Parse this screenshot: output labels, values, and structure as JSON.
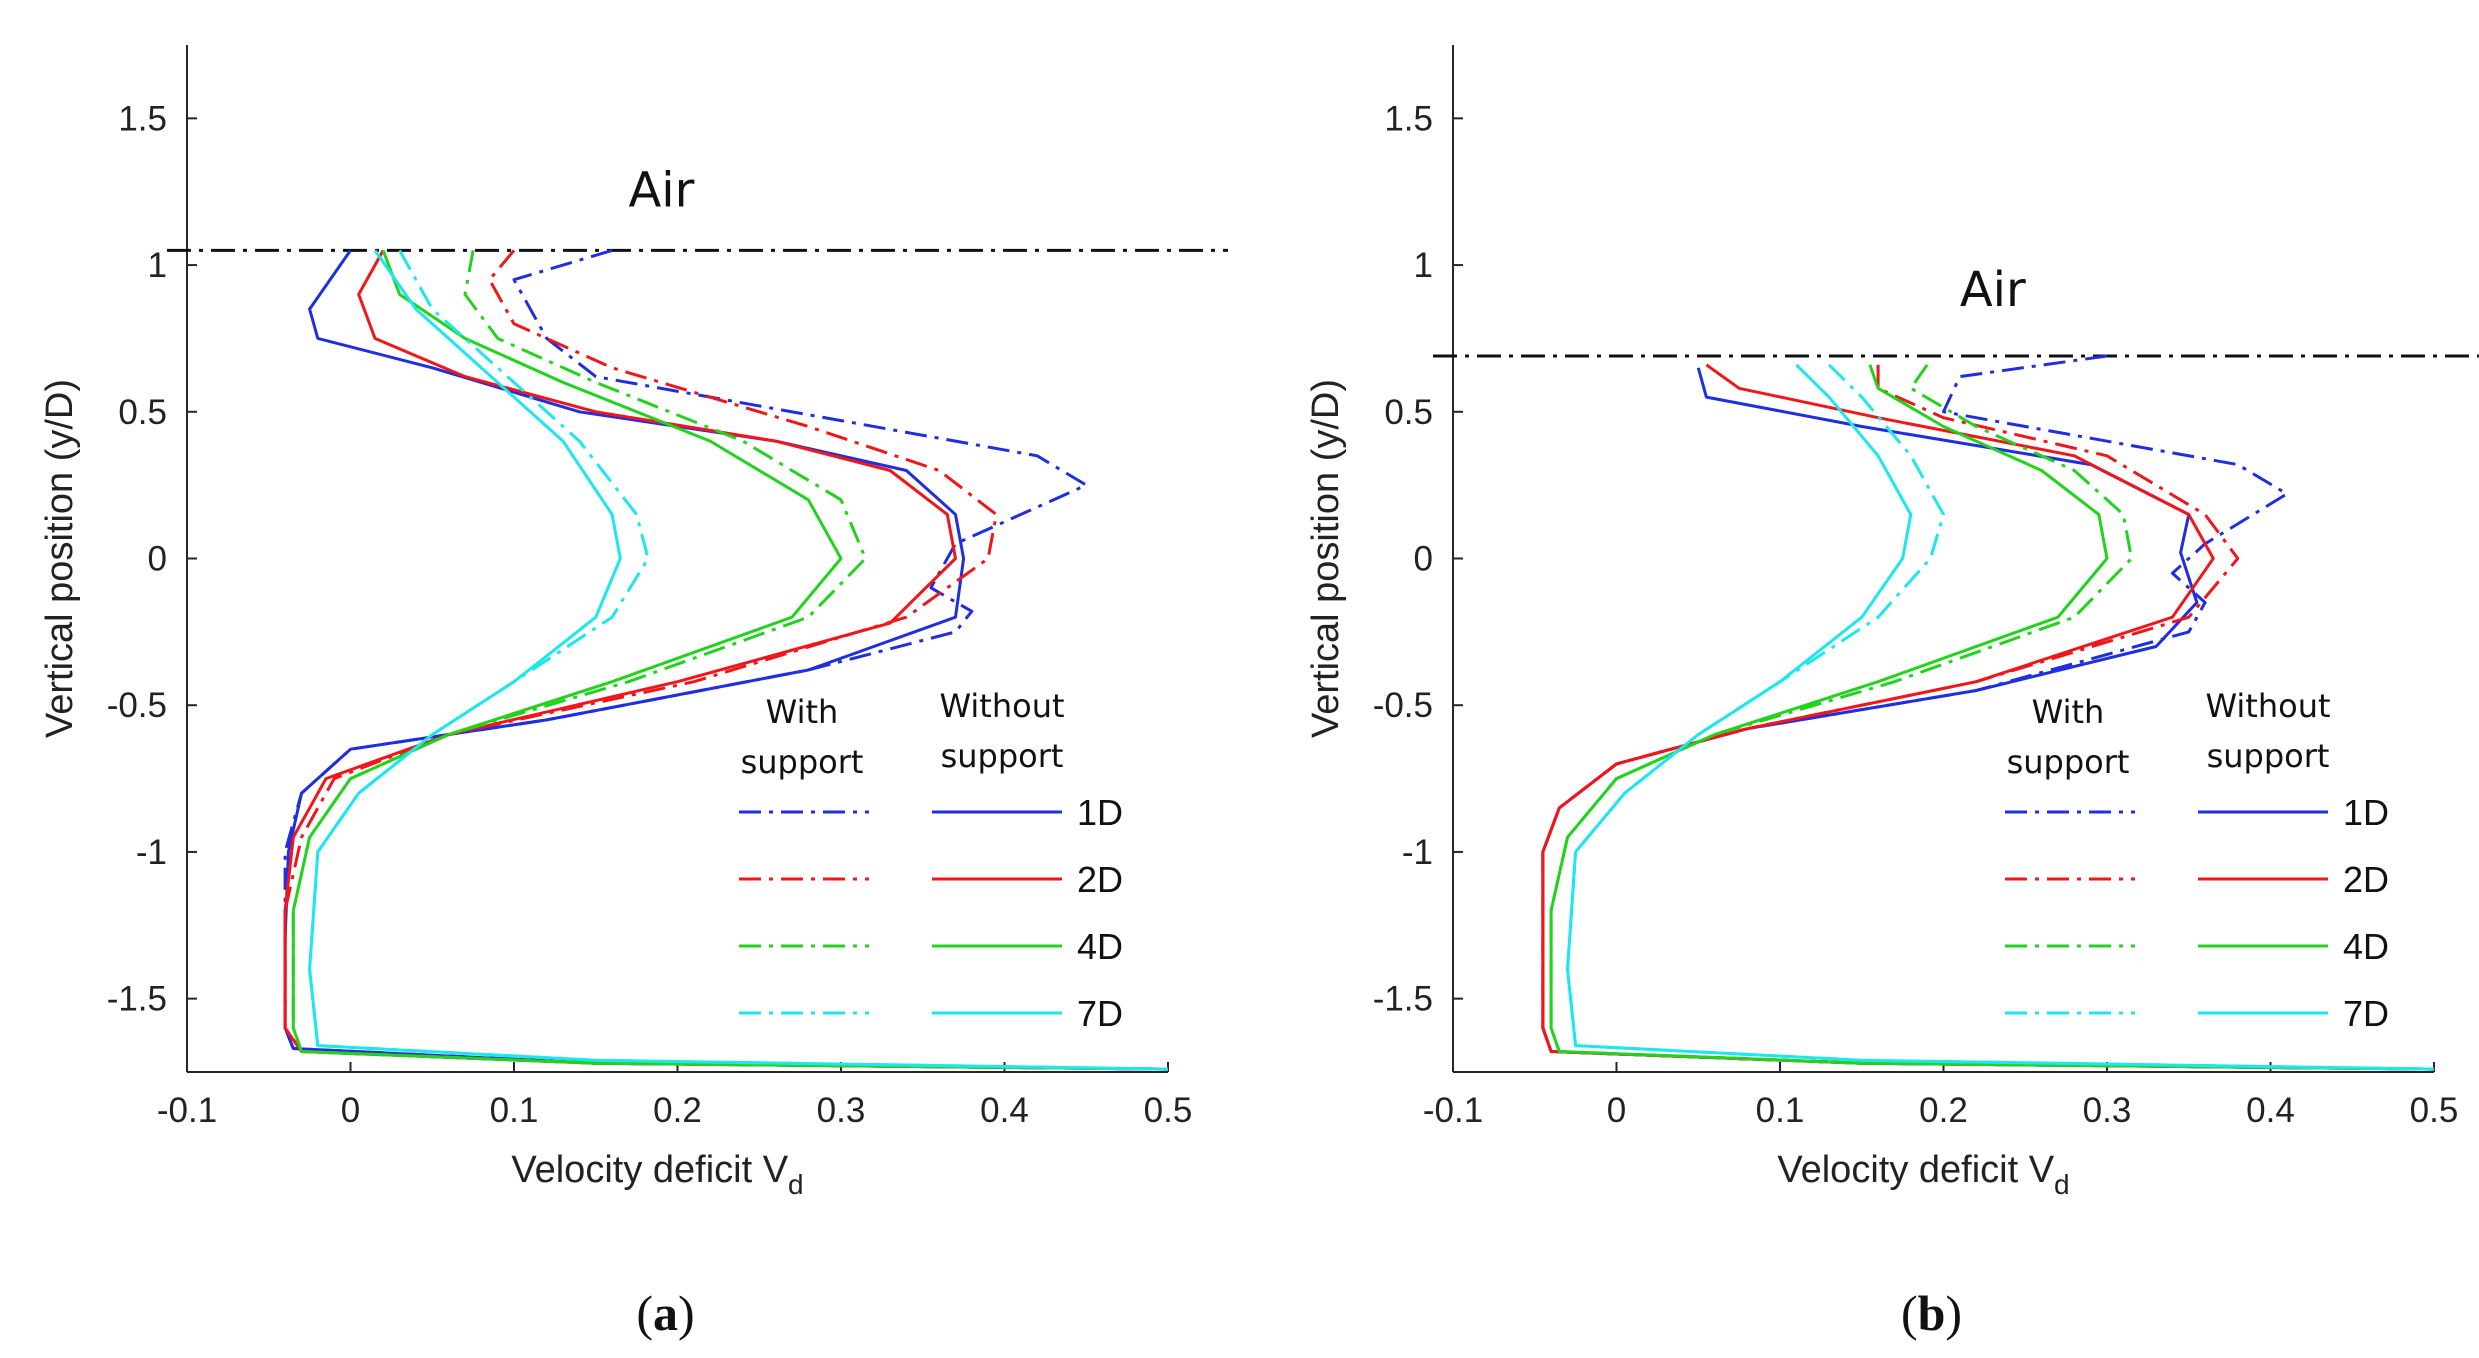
{
  "chart_data": [
    {
      "type": "line",
      "panel_label": "a",
      "xlabel": "Velocity deficit V",
      "xlabel_sub": "d",
      "ylabel": "Vertical position (y/D)",
      "xlim": [
        -0.1,
        0.5
      ],
      "ylim": [
        -1.75,
        1.75
      ],
      "xticks": [
        "-0.1",
        "0",
        "0.1",
        "0.2",
        "0.3",
        "0.4",
        "0.5"
      ],
      "yticks": [
        "-1.5",
        "-1",
        "-0.5",
        "0",
        "0.5",
        "1",
        "1.5"
      ],
      "annotation": {
        "text": "Air",
        "x": 0.17,
        "y": 1.2
      },
      "surface_line_y": 1.05,
      "legend": {
        "placement": "bottom-right",
        "with_header": [
          "With",
          "support"
        ],
        "without_header": [
          "Without",
          "support"
        ],
        "entries": [
          "1D",
          "2D",
          "4D",
          "7D"
        ]
      },
      "series": [
        {
          "name": "1D",
          "support": "without",
          "color": "#1f2ee0",
          "dash": "solid",
          "x": [
            0.0,
            -0.025,
            -0.02,
            0.05,
            0.14,
            0.26,
            0.34,
            0.37,
            0.375,
            0.37,
            0.28,
            0.12,
            0.0,
            -0.03,
            -0.038,
            -0.04,
            -0.04,
            -0.035,
            0.15,
            0.5
          ],
          "y": [
            1.05,
            0.85,
            0.75,
            0.65,
            0.5,
            0.4,
            0.3,
            0.15,
            0.0,
            -0.2,
            -0.38,
            -0.55,
            -0.65,
            -0.8,
            -1.0,
            -1.3,
            -1.6,
            -1.67,
            -1.72,
            -1.74
          ]
        },
        {
          "name": "1D",
          "support": "with",
          "color": "#1f2ee0",
          "dash": "dashdot",
          "x": [
            0.16,
            0.1,
            0.12,
            0.15,
            0.3,
            0.42,
            0.45,
            0.37,
            0.355,
            0.38,
            0.37,
            0.28,
            0.12,
            0.0,
            -0.03,
            -0.04,
            -0.04,
            -0.035,
            0.15,
            0.5
          ],
          "y": [
            1.05,
            0.95,
            0.75,
            0.62,
            0.47,
            0.35,
            0.25,
            0.05,
            -0.1,
            -0.18,
            -0.25,
            -0.38,
            -0.55,
            -0.65,
            -0.8,
            -1.0,
            -1.6,
            -1.67,
            -1.72,
            -1.74
          ]
        },
        {
          "name": "2D",
          "support": "without",
          "color": "#f0161a",
          "dash": "solid",
          "x": [
            0.02,
            0.005,
            0.015,
            0.07,
            0.15,
            0.26,
            0.33,
            0.365,
            0.37,
            0.33,
            0.2,
            0.06,
            -0.015,
            -0.035,
            -0.04,
            -0.04,
            -0.03,
            0.15,
            0.5
          ],
          "y": [
            1.05,
            0.9,
            0.75,
            0.62,
            0.5,
            0.4,
            0.3,
            0.15,
            0.0,
            -0.22,
            -0.42,
            -0.6,
            -0.75,
            -0.95,
            -1.2,
            -1.6,
            -1.68,
            -1.72,
            -1.74
          ]
        },
        {
          "name": "2D",
          "support": "with",
          "color": "#f0161a",
          "dash": "dashdot",
          "x": [
            0.1,
            0.085,
            0.1,
            0.16,
            0.28,
            0.36,
            0.395,
            0.39,
            0.34,
            0.21,
            0.06,
            -0.01,
            -0.03,
            -0.04,
            -0.04,
            -0.03,
            0.15,
            0.5
          ],
          "y": [
            1.05,
            0.95,
            0.8,
            0.65,
            0.45,
            0.3,
            0.15,
            0.0,
            -0.2,
            -0.42,
            -0.6,
            -0.75,
            -0.95,
            -1.2,
            -1.6,
            -1.68,
            -1.72,
            -1.74
          ]
        },
        {
          "name": "4D",
          "support": "without",
          "color": "#22d31e",
          "dash": "solid",
          "x": [
            0.02,
            0.03,
            0.07,
            0.13,
            0.22,
            0.28,
            0.3,
            0.27,
            0.16,
            0.06,
            0.0,
            -0.025,
            -0.035,
            -0.035,
            -0.03,
            0.15,
            0.5
          ],
          "y": [
            1.05,
            0.9,
            0.75,
            0.6,
            0.4,
            0.2,
            0.0,
            -0.2,
            -0.42,
            -0.6,
            -0.75,
            -0.95,
            -1.2,
            -1.6,
            -1.68,
            -1.72,
            -1.74
          ]
        },
        {
          "name": "4D",
          "support": "with",
          "color": "#22d31e",
          "dash": "dashdot",
          "x": [
            0.075,
            0.07,
            0.09,
            0.15,
            0.24,
            0.3,
            0.315,
            0.28,
            0.17,
            0.06,
            0.0,
            -0.025,
            -0.035,
            -0.035,
            -0.03,
            0.15,
            0.5
          ],
          "y": [
            1.05,
            0.9,
            0.75,
            0.6,
            0.4,
            0.2,
            0.0,
            -0.2,
            -0.42,
            -0.6,
            -0.75,
            -0.95,
            -1.2,
            -1.6,
            -1.68,
            -1.72,
            -1.74
          ]
        },
        {
          "name": "7D",
          "support": "without",
          "color": "#1ee6ee",
          "dash": "solid",
          "x": [
            0.015,
            0.04,
            0.08,
            0.13,
            0.16,
            0.165,
            0.15,
            0.1,
            0.05,
            0.005,
            -0.02,
            -0.025,
            -0.02,
            0.15,
            0.5
          ],
          "y": [
            1.05,
            0.85,
            0.65,
            0.4,
            0.15,
            0.0,
            -0.2,
            -0.42,
            -0.6,
            -0.8,
            -1.0,
            -1.4,
            -1.66,
            -1.71,
            -1.74
          ]
        },
        {
          "name": "7D",
          "support": "with",
          "color": "#1ee6ee",
          "dash": "dashdot",
          "x": [
            0.03,
            0.05,
            0.09,
            0.14,
            0.175,
            0.182,
            0.16,
            0.1,
            0.05,
            0.005,
            -0.02,
            -0.025,
            -0.02,
            0.15,
            0.5
          ],
          "y": [
            1.05,
            0.85,
            0.65,
            0.4,
            0.15,
            0.0,
            -0.2,
            -0.42,
            -0.6,
            -0.8,
            -1.0,
            -1.4,
            -1.66,
            -1.71,
            -1.74
          ]
        }
      ]
    },
    {
      "type": "line",
      "panel_label": "b",
      "xlabel": "Velocity deficit V",
      "xlabel_sub": "d",
      "ylabel": "Vertical position (y/D)",
      "xlim": [
        -0.1,
        0.5
      ],
      "ylim": [
        -1.75,
        1.75
      ],
      "xticks": [
        "-0.1",
        "0",
        "0.1",
        "0.2",
        "0.3",
        "0.4",
        "0.5"
      ],
      "yticks": [
        "-1.5",
        "-1",
        "-0.5",
        "0",
        "0.5",
        "1",
        "1.5"
      ],
      "annotation": {
        "text": "Air",
        "x": 0.21,
        "y": 0.86
      },
      "surface_line_y": 0.69,
      "legend": {
        "placement": "bottom-right",
        "with_header": [
          "With",
          "support"
        ],
        "without_header": [
          "Without",
          "support"
        ],
        "entries": [
          "1D",
          "2D",
          "4D",
          "7D"
        ]
      },
      "series": [
        {
          "name": "1D",
          "support": "without",
          "color": "#1f2ee0",
          "dash": "solid",
          "x": [
            0.05,
            0.055,
            0.15,
            0.29,
            0.35,
            0.345,
            0.355,
            0.33,
            0.22,
            0.08,
            0.0,
            -0.035,
            -0.045,
            -0.045,
            -0.04,
            0.15,
            0.5
          ],
          "y": [
            0.65,
            0.55,
            0.45,
            0.32,
            0.15,
            0.02,
            -0.15,
            -0.3,
            -0.45,
            -0.58,
            -0.7,
            -0.85,
            -1.0,
            -1.6,
            -1.68,
            -1.72,
            -1.74
          ]
        },
        {
          "name": "1D",
          "support": "with",
          "color": "#1f2ee0",
          "dash": "dashdot",
          "x": [
            0.3,
            0.21,
            0.2,
            0.25,
            0.38,
            0.41,
            0.36,
            0.34,
            0.36,
            0.35,
            0.22,
            0.08,
            0.0,
            -0.035,
            -0.045,
            -0.045,
            -0.04,
            0.15,
            0.5
          ],
          "y": [
            0.69,
            0.62,
            0.5,
            0.45,
            0.32,
            0.22,
            0.05,
            -0.05,
            -0.15,
            -0.25,
            -0.45,
            -0.58,
            -0.7,
            -0.85,
            -1.0,
            -1.6,
            -1.68,
            -1.72,
            -1.74
          ]
        },
        {
          "name": "2D",
          "support": "without",
          "color": "#f0161a",
          "dash": "solid",
          "x": [
            0.055,
            0.075,
            0.16,
            0.28,
            0.35,
            0.365,
            0.34,
            0.22,
            0.08,
            0.0,
            -0.035,
            -0.045,
            -0.045,
            -0.04,
            0.15,
            0.5
          ],
          "y": [
            0.66,
            0.58,
            0.48,
            0.35,
            0.15,
            0.0,
            -0.2,
            -0.42,
            -0.58,
            -0.7,
            -0.85,
            -1.0,
            -1.6,
            -1.68,
            -1.72,
            -1.74
          ]
        },
        {
          "name": "2D",
          "support": "with",
          "color": "#f0161a",
          "dash": "dashdot",
          "x": [
            0.16,
            0.16,
            0.2,
            0.3,
            0.36,
            0.38,
            0.35,
            0.22,
            0.08,
            0.0,
            -0.035,
            -0.045,
            -0.045,
            -0.04,
            0.15,
            0.5
          ],
          "y": [
            0.66,
            0.58,
            0.48,
            0.35,
            0.15,
            0.0,
            -0.2,
            -0.42,
            -0.58,
            -0.7,
            -0.85,
            -1.0,
            -1.6,
            -1.68,
            -1.72,
            -1.74
          ]
        },
        {
          "name": "4D",
          "support": "without",
          "color": "#22d31e",
          "dash": "solid",
          "x": [
            0.155,
            0.16,
            0.2,
            0.26,
            0.295,
            0.3,
            0.27,
            0.16,
            0.06,
            0.0,
            -0.03,
            -0.04,
            -0.04,
            -0.035,
            0.15,
            0.5
          ],
          "y": [
            0.66,
            0.58,
            0.45,
            0.3,
            0.15,
            0.0,
            -0.2,
            -0.42,
            -0.6,
            -0.75,
            -0.95,
            -1.2,
            -1.6,
            -1.68,
            -1.72,
            -1.74
          ]
        },
        {
          "name": "4D",
          "support": "with",
          "color": "#22d31e",
          "dash": "dashdot",
          "x": [
            0.19,
            0.18,
            0.22,
            0.28,
            0.31,
            0.315,
            0.28,
            0.17,
            0.06,
            0.0,
            -0.03,
            -0.04,
            -0.04,
            -0.035,
            0.15,
            0.5
          ],
          "y": [
            0.66,
            0.58,
            0.45,
            0.3,
            0.15,
            0.0,
            -0.2,
            -0.42,
            -0.6,
            -0.75,
            -0.95,
            -1.2,
            -1.6,
            -1.68,
            -1.72,
            -1.74
          ]
        },
        {
          "name": "7D",
          "support": "without",
          "color": "#1ee6ee",
          "dash": "solid",
          "x": [
            0.11,
            0.13,
            0.16,
            0.18,
            0.175,
            0.15,
            0.1,
            0.05,
            0.005,
            -0.025,
            -0.03,
            -0.025,
            0.15,
            0.5
          ],
          "y": [
            0.66,
            0.55,
            0.35,
            0.15,
            0.0,
            -0.2,
            -0.42,
            -0.6,
            -0.8,
            -1.0,
            -1.4,
            -1.66,
            -1.71,
            -1.74
          ]
        },
        {
          "name": "7D",
          "support": "with",
          "color": "#1ee6ee",
          "dash": "dashdot",
          "x": [
            0.13,
            0.15,
            0.18,
            0.2,
            0.192,
            0.16,
            0.1,
            0.05,
            0.005,
            -0.025,
            -0.03,
            -0.025,
            0.15,
            0.5
          ],
          "y": [
            0.66,
            0.55,
            0.35,
            0.15,
            0.0,
            -0.2,
            -0.42,
            -0.6,
            -0.8,
            -1.0,
            -1.4,
            -1.66,
            -1.71,
            -1.74
          ]
        }
      ]
    }
  ]
}
